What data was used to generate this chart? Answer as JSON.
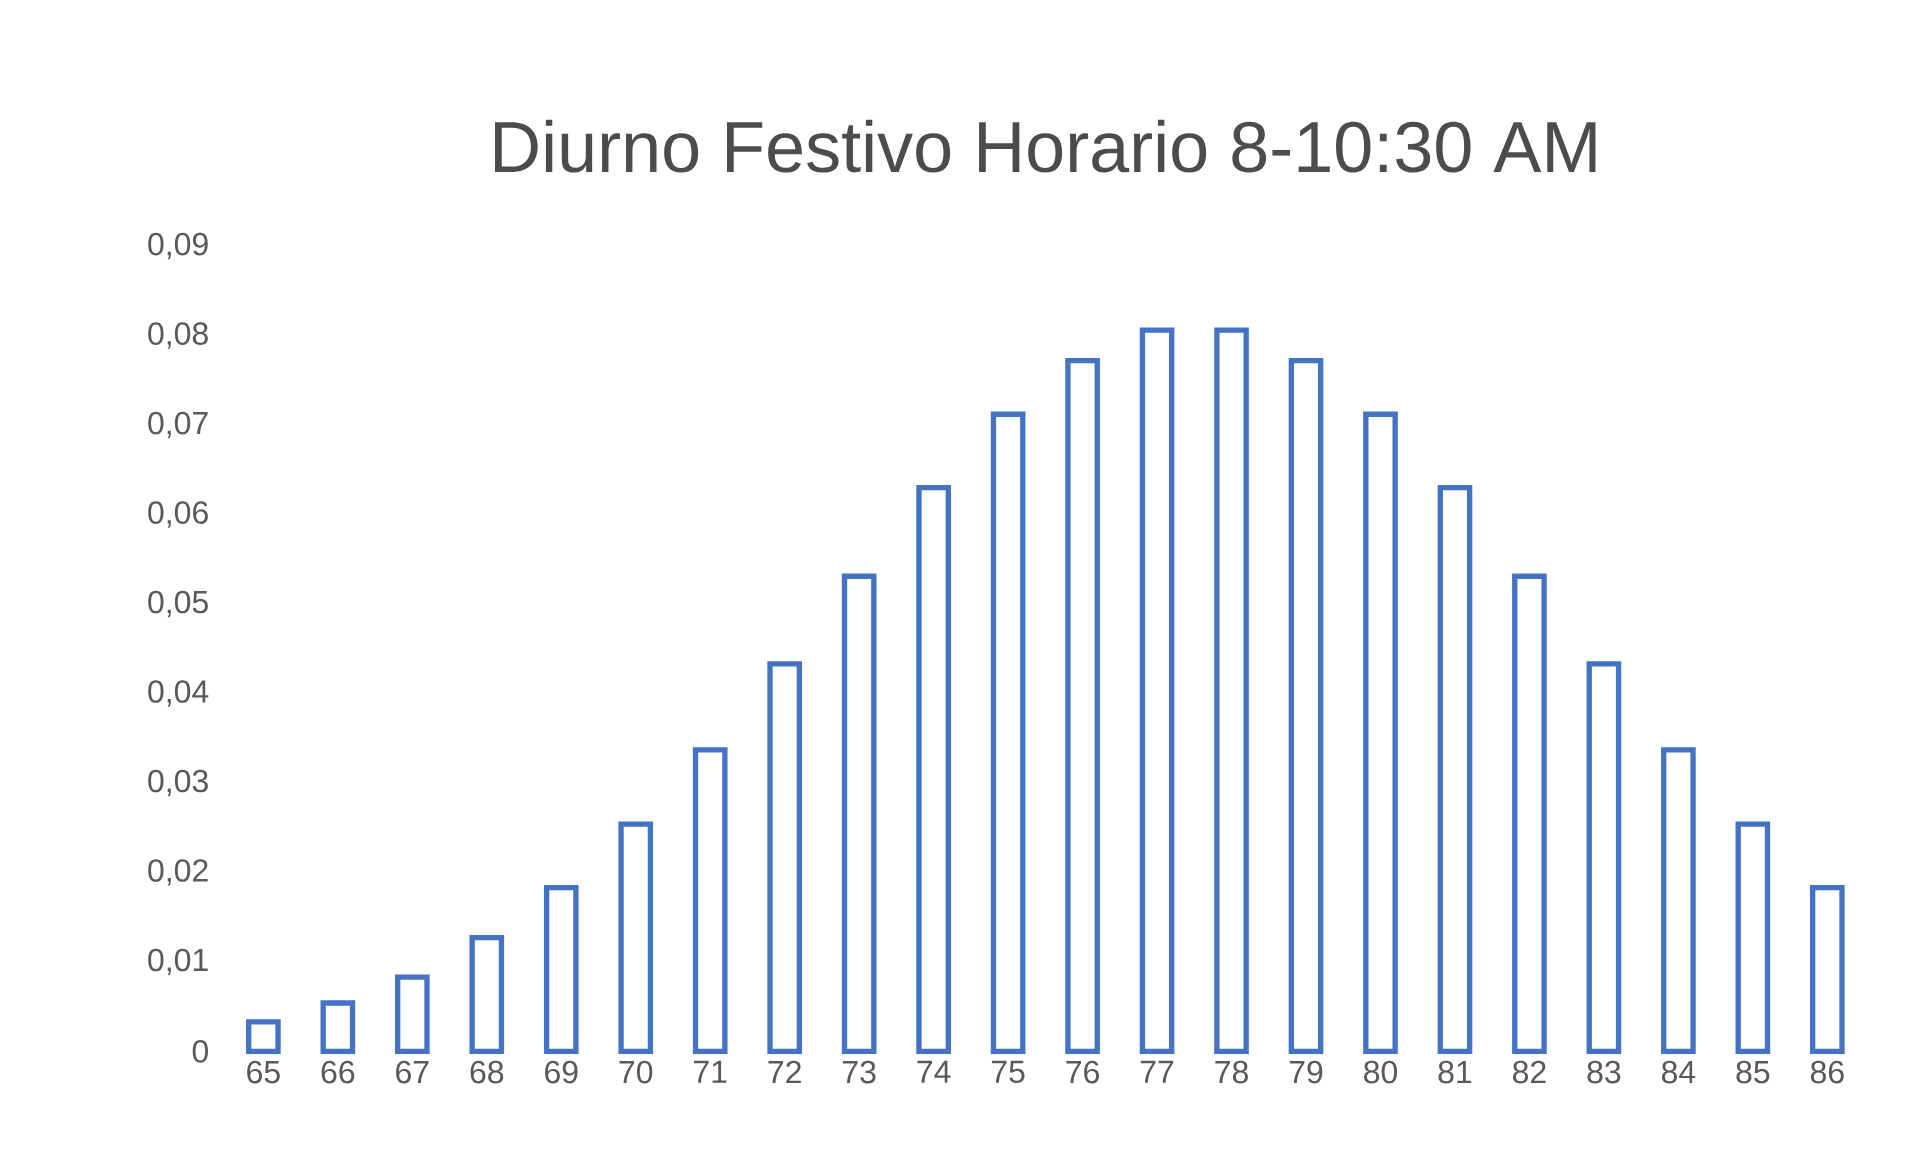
{
  "chart_data": {
    "type": "bar",
    "title": "Diurno Festivo  Horario 8-10:30 AM",
    "categories": [
      "65",
      "66",
      "67",
      "68",
      "69",
      "70",
      "71",
      "72",
      "73",
      "74",
      "75",
      "76",
      "77",
      "78",
      "79",
      "80",
      "81",
      "82",
      "83",
      "84",
      "85",
      "86"
    ],
    "values": [
      0.0033,
      0.0054,
      0.0083,
      0.0127,
      0.0183,
      0.0254,
      0.0337,
      0.0433,
      0.0531,
      0.063,
      0.0712,
      0.0772,
      0.0806,
      0.0806,
      0.0772,
      0.0712,
      0.063,
      0.0531,
      0.0433,
      0.0337,
      0.0254,
      0.0183
    ],
    "color": "#4472c4",
    "ylim": [
      0,
      0.09
    ],
    "yticks": [
      0,
      {
        "value": 0.01,
        "label": "0,01"
      },
      {
        "value": 0.02,
        "label": "0,02"
      },
      {
        "value": 0.03,
        "label": "0,03"
      },
      {
        "value": 0.04,
        "label": "0,04"
      },
      {
        "value": 0.05,
        "label": "0,05"
      },
      {
        "value": 0.06,
        "label": "0,06"
      },
      {
        "value": 0.07,
        "label": "0,07"
      },
      {
        "value": 0.08,
        "label": "0,08"
      },
      {
        "value": 0.09,
        "label": "0,09"
      }
    ]
  }
}
